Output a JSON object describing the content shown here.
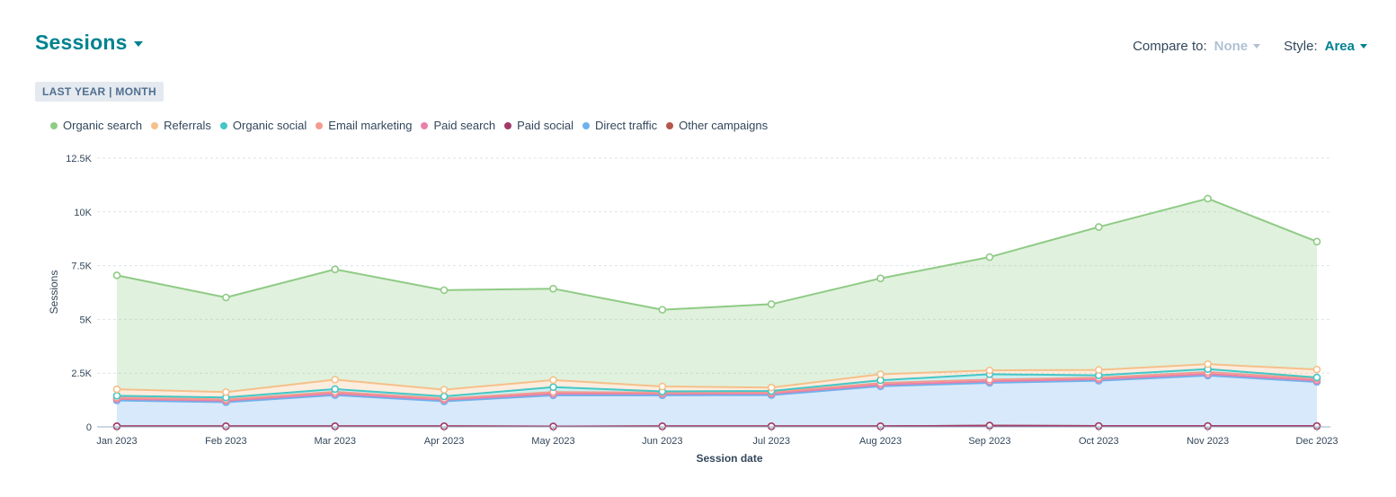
{
  "header": {
    "title": "Sessions"
  },
  "controls": {
    "compare_label": "Compare to:",
    "compare_value": "None",
    "style_label": "Style:",
    "style_value": "Area"
  },
  "badge": "LAST YEAR | MONTH",
  "legend": [
    {
      "name": "Organic search",
      "color": "#8fcb85"
    },
    {
      "name": "Referrals",
      "color": "#f5c08a"
    },
    {
      "name": "Organic social",
      "color": "#45c6c6"
    },
    {
      "name": "Email marketing",
      "color": "#f29b8e"
    },
    {
      "name": "Paid search",
      "color": "#ea80a9"
    },
    {
      "name": "Paid social",
      "color": "#a23a67"
    },
    {
      "name": "Direct traffic",
      "color": "#6fb1ec"
    },
    {
      "name": "Other campaigns",
      "color": "#b4574c"
    }
  ],
  "chart_data": {
    "type": "area",
    "stacked": true,
    "title": "Sessions",
    "xlabel": "Session date",
    "ylabel": "Sessions",
    "ylim": [
      0,
      12500
    ],
    "yticks": [
      0,
      2500,
      5000,
      7500,
      10000,
      12500
    ],
    "ytick_labels": [
      "0",
      "2.5K",
      "5K",
      "7.5K",
      "10K",
      "12.5K"
    ],
    "categories": [
      "Jan 2023",
      "Feb 2023",
      "Mar 2023",
      "Apr 2023",
      "May 2023",
      "Jun 2023",
      "Jul 2023",
      "Aug 2023",
      "Sep 2023",
      "Oct 2023",
      "Nov 2023",
      "Dec 2023"
    ],
    "series": [
      {
        "name": "Other campaigns",
        "color": "#b4574c",
        "values": [
          30,
          30,
          30,
          30,
          20,
          30,
          30,
          30,
          60,
          40,
          40,
          40
        ]
      },
      {
        "name": "Paid social",
        "color": "#a23a67",
        "values": [
          0,
          0,
          0,
          0,
          0,
          0,
          0,
          0,
          0,
          0,
          0,
          0
        ]
      },
      {
        "name": "Direct traffic",
        "color": "#6fb1ec",
        "values": [
          1200,
          1120,
          1450,
          1160,
          1450,
          1440,
          1450,
          1860,
          1990,
          2110,
          2350,
          2050
        ]
      },
      {
        "name": "Paid search",
        "color": "#ea80a9",
        "values": [
          70,
          70,
          70,
          70,
          70,
          70,
          70,
          70,
          70,
          70,
          70,
          70
        ]
      },
      {
        "name": "Email marketing",
        "color": "#f29b8e",
        "values": [
          60,
          60,
          80,
          60,
          80,
          60,
          60,
          80,
          80,
          70,
          90,
          80
        ]
      },
      {
        "name": "Organic social",
        "color": "#45c6c6",
        "values": [
          90,
          90,
          130,
          100,
          230,
          50,
          60,
          130,
          250,
          110,
          140,
          60
        ]
      },
      {
        "name": "Referrals",
        "color": "#f5c08a",
        "values": [
          300,
          250,
          440,
          310,
          330,
          230,
          160,
          280,
          180,
          250,
          230,
          370
        ]
      },
      {
        "name": "Organic search",
        "color": "#8fcb85",
        "values": [
          5300,
          4400,
          5130,
          4630,
          4250,
          3570,
          3880,
          4460,
          5270,
          6650,
          7700,
          5950
        ]
      }
    ]
  }
}
